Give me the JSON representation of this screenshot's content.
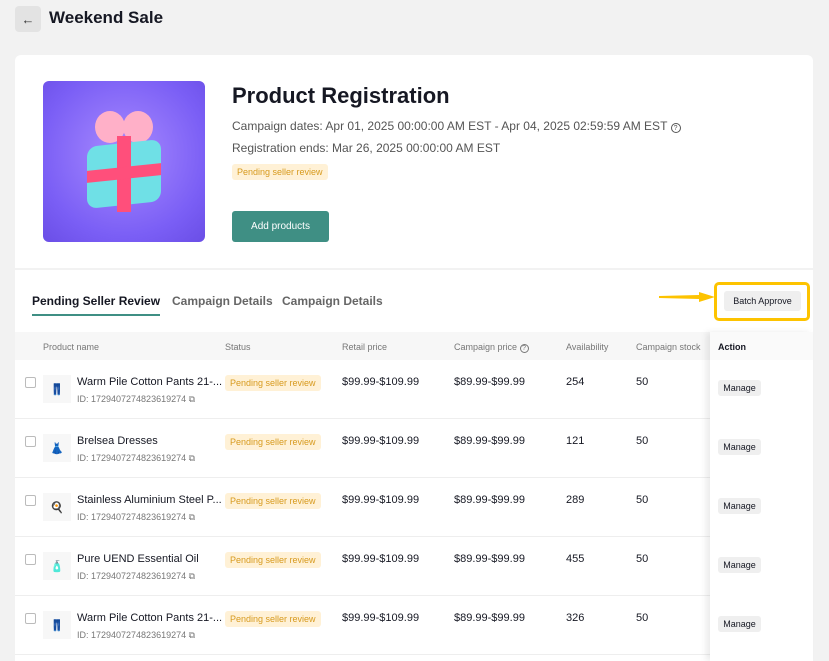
{
  "header": {
    "title": "Weekend Sale",
    "back_icon": "arrow-left-icon"
  },
  "campaign": {
    "title": "Product Registration",
    "dates": "Campaign dates: Apr 01, 2025 00:00:00 AM EST - Apr 04, 2025 02:59:59 AM EST",
    "registration": "Registration ends: Mar 26, 2025 00:00:00 AM EST",
    "status": "Pending seller review",
    "add_label": "Add products"
  },
  "tabs": [
    {
      "label": "Pending Seller Review",
      "active": true
    },
    {
      "label": "Campaign Details"
    },
    {
      "label": "Campaign Details"
    }
  ],
  "batch_label": "Batch Approve",
  "highlight_color": "#fdc300",
  "accent": "#3f8f84",
  "columns": {
    "name": "Product name",
    "status": "Status",
    "retail": "Retail price",
    "campaign": "Campaign price",
    "availability": "Availability",
    "stock": "Campaign stock",
    "action": "Action"
  },
  "rows": [
    {
      "name": "Warm Pile Cotton Pants 21-...",
      "id": "ID: 1729407274823619274",
      "status": "Pending seller review",
      "retail": "$99.99-$109.99",
      "campaign": "$89.99-$99.99",
      "availability": "254",
      "stock": "50",
      "action": "Manage",
      "thumb": "👖"
    },
    {
      "name": "Brelsea Dresses",
      "id": "ID: 1729407274823619274",
      "status": "Pending seller review",
      "retail": "$99.99-$109.99",
      "campaign": "$89.99-$99.99",
      "availability": "121",
      "stock": "50",
      "action": "Manage",
      "thumb": "👗"
    },
    {
      "name": "Stainless Aluminium Steel P...",
      "id": "ID: 1729407274823619274",
      "status": "Pending seller review",
      "retail": "$99.99-$109.99",
      "campaign": "$89.99-$99.99",
      "availability": "289",
      "stock": "50",
      "action": "Manage",
      "thumb": "🍳"
    },
    {
      "name": "Pure UEND Essential Oil",
      "id": "ID: 1729407274823619274",
      "status": "Pending seller review",
      "retail": "$99.99-$109.99",
      "campaign": "$89.99-$99.99",
      "availability": "455",
      "stock": "50",
      "action": "Manage",
      "thumb": "🧴"
    },
    {
      "name": "Warm Pile Cotton Pants 21-...",
      "id": "ID: 1729407274823619274",
      "status": "Pending seller review",
      "retail": "$99.99-$109.99",
      "campaign": "$89.99-$99.99",
      "availability": "326",
      "stock": "50",
      "action": "Manage",
      "thumb": "👖"
    }
  ]
}
